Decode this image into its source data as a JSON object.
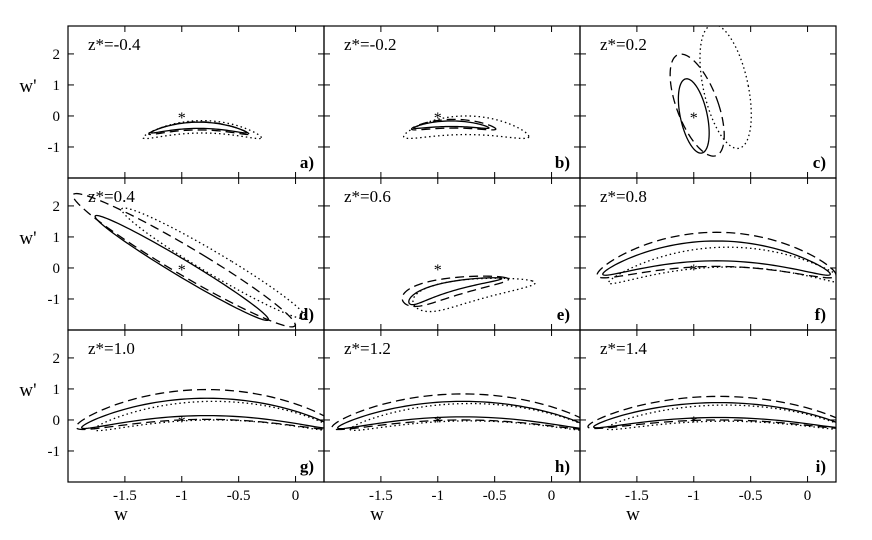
{
  "chart_data": {
    "type": "line",
    "grid": false,
    "layout": "3x3 panels with shared axes",
    "xlabel": "w",
    "ylabel": "w'",
    "xlim": [
      -2.0,
      0.25
    ],
    "ylim": [
      -2.0,
      2.9
    ],
    "xticks": [
      -1.5,
      -1,
      -0.5,
      0
    ],
    "xtick_labels": [
      "-1.5",
      "-1",
      "-0.5",
      "0"
    ],
    "yticks": [
      -1,
      0,
      1,
      2
    ],
    "ytick_labels": [
      "-1",
      "0",
      "1",
      "2"
    ],
    "fiducial_point": {
      "x": -1,
      "y": 0,
      "marker": "*"
    },
    "line_styles": [
      "solid",
      "dashed",
      "dotted"
    ],
    "panels": [
      {
        "title": "z*=-0.4",
        "letter": "a)",
        "contours": [
          {
            "style": "solid",
            "cx": -0.85,
            "cy": -0.3,
            "rx": 0.42,
            "ry": 0.1,
            "curv": -1.35,
            "rot": 0
          },
          {
            "style": "dashed",
            "cx": -0.85,
            "cy": -0.32,
            "rx": 0.44,
            "ry": 0.13,
            "curv": -1.35,
            "rot": 0
          },
          {
            "style": "dotted",
            "cx": -0.82,
            "cy": -0.35,
            "rx": 0.52,
            "ry": 0.2,
            "curv": -1.3,
            "rot": 0
          }
        ]
      },
      {
        "title": "z*=-0.2",
        "letter": "b)",
        "contours": [
          {
            "style": "solid",
            "cx": -0.88,
            "cy": -0.25,
            "rx": 0.33,
            "ry": 0.09,
            "curv": -1.25,
            "rot": 0
          },
          {
            "style": "dashed",
            "cx": -0.86,
            "cy": -0.25,
            "rx": 0.37,
            "ry": 0.14,
            "curv": -1.25,
            "rot": 0
          },
          {
            "style": "dotted",
            "cx": -0.75,
            "cy": -0.3,
            "rx": 0.55,
            "ry": 0.3,
            "curv": -1.2,
            "rot": 0
          }
        ]
      },
      {
        "title": "z*=0.2",
        "letter": "c)",
        "contours": [
          {
            "style": "solid",
            "cx": -1.0,
            "cy": 0.0,
            "rx": 0.12,
            "ry": 1.2,
            "curv": 0,
            "rot": 3
          },
          {
            "style": "dashed",
            "cx": -0.97,
            "cy": 0.35,
            "rx": 0.19,
            "ry": 1.65,
            "curv": 0,
            "rot": 5
          },
          {
            "style": "dotted",
            "cx": -0.72,
            "cy": 0.95,
            "rx": 0.2,
            "ry": 2.0,
            "curv": 0,
            "rot": 3
          }
        ]
      },
      {
        "title": "z*=0.4",
        "letter": "d)",
        "contours": [
          {
            "style": "solid",
            "cx": -1.0,
            "cy": 0.0,
            "rx": 0.13,
            "ry": 1.85,
            "curv": 0,
            "rot": 24
          },
          {
            "style": "dashed",
            "cx": -0.98,
            "cy": 0.25,
            "rx": 0.22,
            "ry": 2.35,
            "curv": 0,
            "rot": 24
          },
          {
            "style": "dotted",
            "cx": -0.72,
            "cy": 0.15,
            "rx": 0.17,
            "ry": 1.95,
            "curv": 0,
            "rot": 24
          }
        ]
      },
      {
        "title": "z*=0.6",
        "letter": "e)",
        "contours": [
          {
            "style": "solid",
            "cx": -0.95,
            "cy": -0.65,
            "rx": 0.58,
            "ry": 0.12,
            "curv": -0.45,
            "rot": 47
          },
          {
            "style": "dashed",
            "cx": -0.95,
            "cy": -0.65,
            "rx": 0.62,
            "ry": 0.24,
            "curv": -0.45,
            "rot": 47
          },
          {
            "style": "dotted",
            "cx": -0.8,
            "cy": -0.75,
            "rx": 0.68,
            "ry": 0.3,
            "curv": -0.45,
            "rot": 45
          }
        ]
      },
      {
        "title": "z*=0.8",
        "letter": "f)",
        "contours": [
          {
            "style": "solid",
            "cx": -0.8,
            "cy": 0.55,
            "rx": 1.0,
            "ry": 0.32,
            "curv": -0.75,
            "rot": 0
          },
          {
            "style": "dashed",
            "cx": -0.8,
            "cy": 0.6,
            "rx": 1.05,
            "ry": 0.55,
            "curv": -0.75,
            "rot": 0
          },
          {
            "style": "dotted",
            "cx": -0.7,
            "cy": 0.35,
            "rx": 1.05,
            "ry": 0.32,
            "curv": -0.75,
            "rot": 0
          }
        ]
      },
      {
        "title": "z*=1.0",
        "letter": "g)",
        "contours": [
          {
            "style": "solid",
            "cx": -0.78,
            "cy": 0.42,
            "rx": 1.1,
            "ry": 0.28,
            "curv": -0.55,
            "rot": 0
          },
          {
            "style": "dashed",
            "cx": -0.78,
            "cy": 0.5,
            "rx": 1.15,
            "ry": 0.48,
            "curv": -0.55,
            "rot": 0
          },
          {
            "style": "dotted",
            "cx": -0.72,
            "cy": 0.3,
            "rx": 1.05,
            "ry": 0.3,
            "curv": -0.55,
            "rot": 0
          }
        ]
      },
      {
        "title": "z*=1.2",
        "letter": "h)",
        "contours": [
          {
            "style": "solid",
            "cx": -0.78,
            "cy": 0.35,
            "rx": 1.1,
            "ry": 0.25,
            "curv": -0.5,
            "rot": 0
          },
          {
            "style": "dashed",
            "cx": -0.78,
            "cy": 0.42,
            "rx": 1.15,
            "ry": 0.42,
            "curv": -0.5,
            "rot": 0
          },
          {
            "style": "dotted",
            "cx": -0.72,
            "cy": 0.25,
            "rx": 1.05,
            "ry": 0.28,
            "curv": -0.5,
            "rot": 0
          }
        ]
      },
      {
        "title": "z*=1.4",
        "letter": "i)",
        "contours": [
          {
            "style": "solid",
            "cx": -0.78,
            "cy": 0.32,
            "rx": 1.1,
            "ry": 0.24,
            "curv": -0.45,
            "rot": 0
          },
          {
            "style": "dashed",
            "cx": -0.78,
            "cy": 0.38,
            "rx": 1.15,
            "ry": 0.38,
            "curv": -0.45,
            "rot": 0
          },
          {
            "style": "dotted",
            "cx": -0.72,
            "cy": 0.22,
            "rx": 1.05,
            "ry": 0.26,
            "curv": -0.45,
            "rot": 0
          }
        ]
      }
    ]
  }
}
